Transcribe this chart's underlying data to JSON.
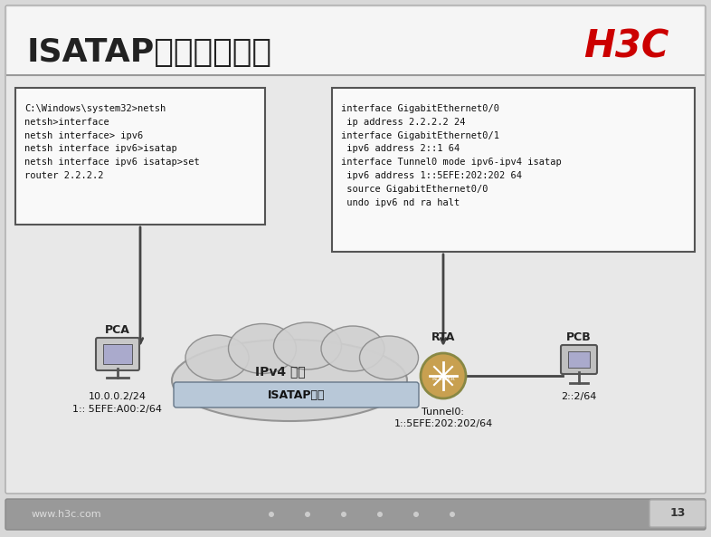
{
  "title": "ISATAP隧道配置示例",
  "h3c_logo": "H3C",
  "bg_color": "#d8d8d8",
  "slide_bg": "#f0f0f0",
  "header_bg": "#ffffff",
  "footer_bg": "#888888",
  "footer_text": "www.h3c.com",
  "page_num": "13",
  "left_box_text": "C:\\Windows\\system32>netsh\nnetsh>interface\nnetsh interface> ipv6\nnetsh interface ipv6>isatap\nnetsh interface ipv6 isatap>set\nrouter 2.2.2.2",
  "right_box_text": "interface GigabitEthernet0/0\n ip address 2.2.2.2 24\ninterface GigabitEthernet0/1\n ipv6 address 2::1 64\ninterface Tunnel0 mode ipv6-ipv4 isatap\n ipv6 address 1::5EFE:202:202 64\n source GigabitEthernet0/0\n undo ipv6 nd ra halt",
  "cloud_label": "IPv4 网络",
  "tunnel_label": "ISATAP隧道",
  "pca_label": "PCA",
  "rta_label": "RTA",
  "pcb_label": "PCB",
  "pca_addr1": "10.0.0.2/24",
  "pca_addr2": "1:: 5EFE:A00:2/64",
  "rta_addr1": "Tunnel0:",
  "rta_addr2": "1::5EFE:202:202/64",
  "pcb_addr": "2::2/64"
}
